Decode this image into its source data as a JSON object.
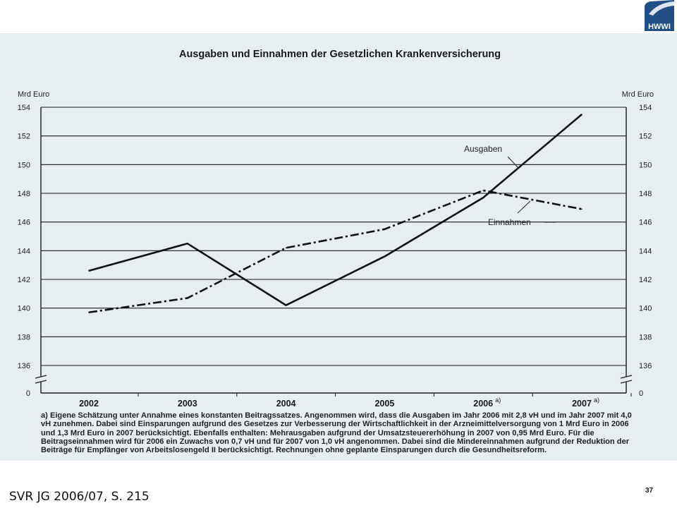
{
  "logo": {
    "text": "HWWI",
    "color": "#1f4f86"
  },
  "source": "SVR JG 2006/07, S. 215",
  "page_number": "37",
  "chart_data": {
    "type": "line",
    "title": "Ausgaben und Einnahmen der Gesetzlichen Krankenversicherung",
    "ylabel_left": "Mrd Euro",
    "ylabel_right": "Mrd Euro",
    "x_categories": [
      "2002",
      "2003",
      "2004",
      "2005",
      "2006",
      "2007"
    ],
    "x_superscripts": [
      "",
      "",
      "",
      "",
      "a)",
      "a)"
    ],
    "ylim": [
      136,
      154
    ],
    "y_ticks": [
      "154",
      "152",
      "150",
      "148",
      "146",
      "144",
      "142",
      "140",
      "138",
      "136"
    ],
    "y_zero_tick": "0",
    "axis_break": true,
    "grid": true,
    "series": [
      {
        "name": "Ausgaben",
        "style": "solid",
        "color": "#111111",
        "values": [
          142.6,
          144.5,
          140.2,
          143.6,
          147.7,
          153.5
        ]
      },
      {
        "name": "Einnahmen",
        "style": "dashdot",
        "color": "#111111",
        "values": [
          139.7,
          140.7,
          144.2,
          145.5,
          148.2,
          146.9
        ]
      }
    ],
    "footnote": "a) Eigene Schätzung unter Annahme eines konstanten Beitragssatzes. Angenommen wird, dass die Ausgaben im Jahr 2006 mit 2,8 vH und im Jahr 2007 mit 4,0 vH zunehmen. Dabei sind Einsparungen aufgrund des Gesetzes zur Verbesserung der Wirtschaftlichkeit in der Arzneimittelversorgung von 1 Mrd Euro in 2006 und 1,3 Mrd Euro in 2007 berücksichtigt. Ebenfalls enthalten: Mehrausgaben aufgrund der Umsatzsteuererhöhung in 2007 von 0,95 Mrd Euro. Für die Beitragseinnahmen wird für 2006 ein Zuwachs von 0,7 vH und für 2007 von 1,0 vH angenommen. Dabei sind die Mindereinnahmen aufgrund der Reduktion der Beiträge für Empfänger von Arbeitslosengeld II berücksichtigt. Rechnungen ohne geplante Einsparungen durch die Gesundheitsreform."
  }
}
